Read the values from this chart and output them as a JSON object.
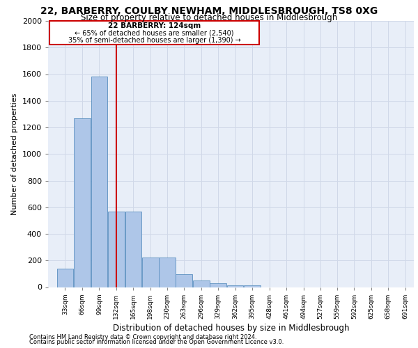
{
  "title_line1": "22, BARBERRY, COULBY NEWHAM, MIDDLESBROUGH, TS8 0XG",
  "title_line2": "Size of property relative to detached houses in Middlesbrough",
  "xlabel": "Distribution of detached houses by size in Middlesbrough",
  "ylabel": "Number of detached properties",
  "footer_line1": "Contains HM Land Registry data © Crown copyright and database right 2024.",
  "footer_line2": "Contains public sector information licensed under the Open Government Licence v3.0.",
  "annotation_title": "22 BARBERRY: 124sqm",
  "annotation_line1": "← 65% of detached houses are smaller (2,540)",
  "annotation_line2": "35% of semi-detached houses are larger (1,390) →",
  "property_size": 124,
  "bar_categories": [
    33,
    66,
    99,
    132,
    165,
    198,
    230,
    263,
    296,
    329,
    362,
    395,
    428,
    461,
    494,
    527,
    559,
    592,
    625,
    658,
    691
  ],
  "bar_values": [
    140,
    1270,
    1580,
    565,
    565,
    220,
    220,
    95,
    50,
    30,
    15,
    15,
    0,
    0,
    0,
    0,
    0,
    0,
    0,
    0,
    0
  ],
  "bar_color": "#aec6e8",
  "bar_edge_color": "#5a8fc0",
  "vline_color": "#cc0000",
  "vline_x": 132,
  "ylim": [
    0,
    2000
  ],
  "yticks": [
    0,
    200,
    400,
    600,
    800,
    1000,
    1200,
    1400,
    1600,
    1800,
    2000
  ],
  "grid_color": "#d0d8e8",
  "background_color": "#e8eef8",
  "annotation_box_color": "#ffffff",
  "annotation_box_edge": "#cc0000",
  "bin_width": 33
}
